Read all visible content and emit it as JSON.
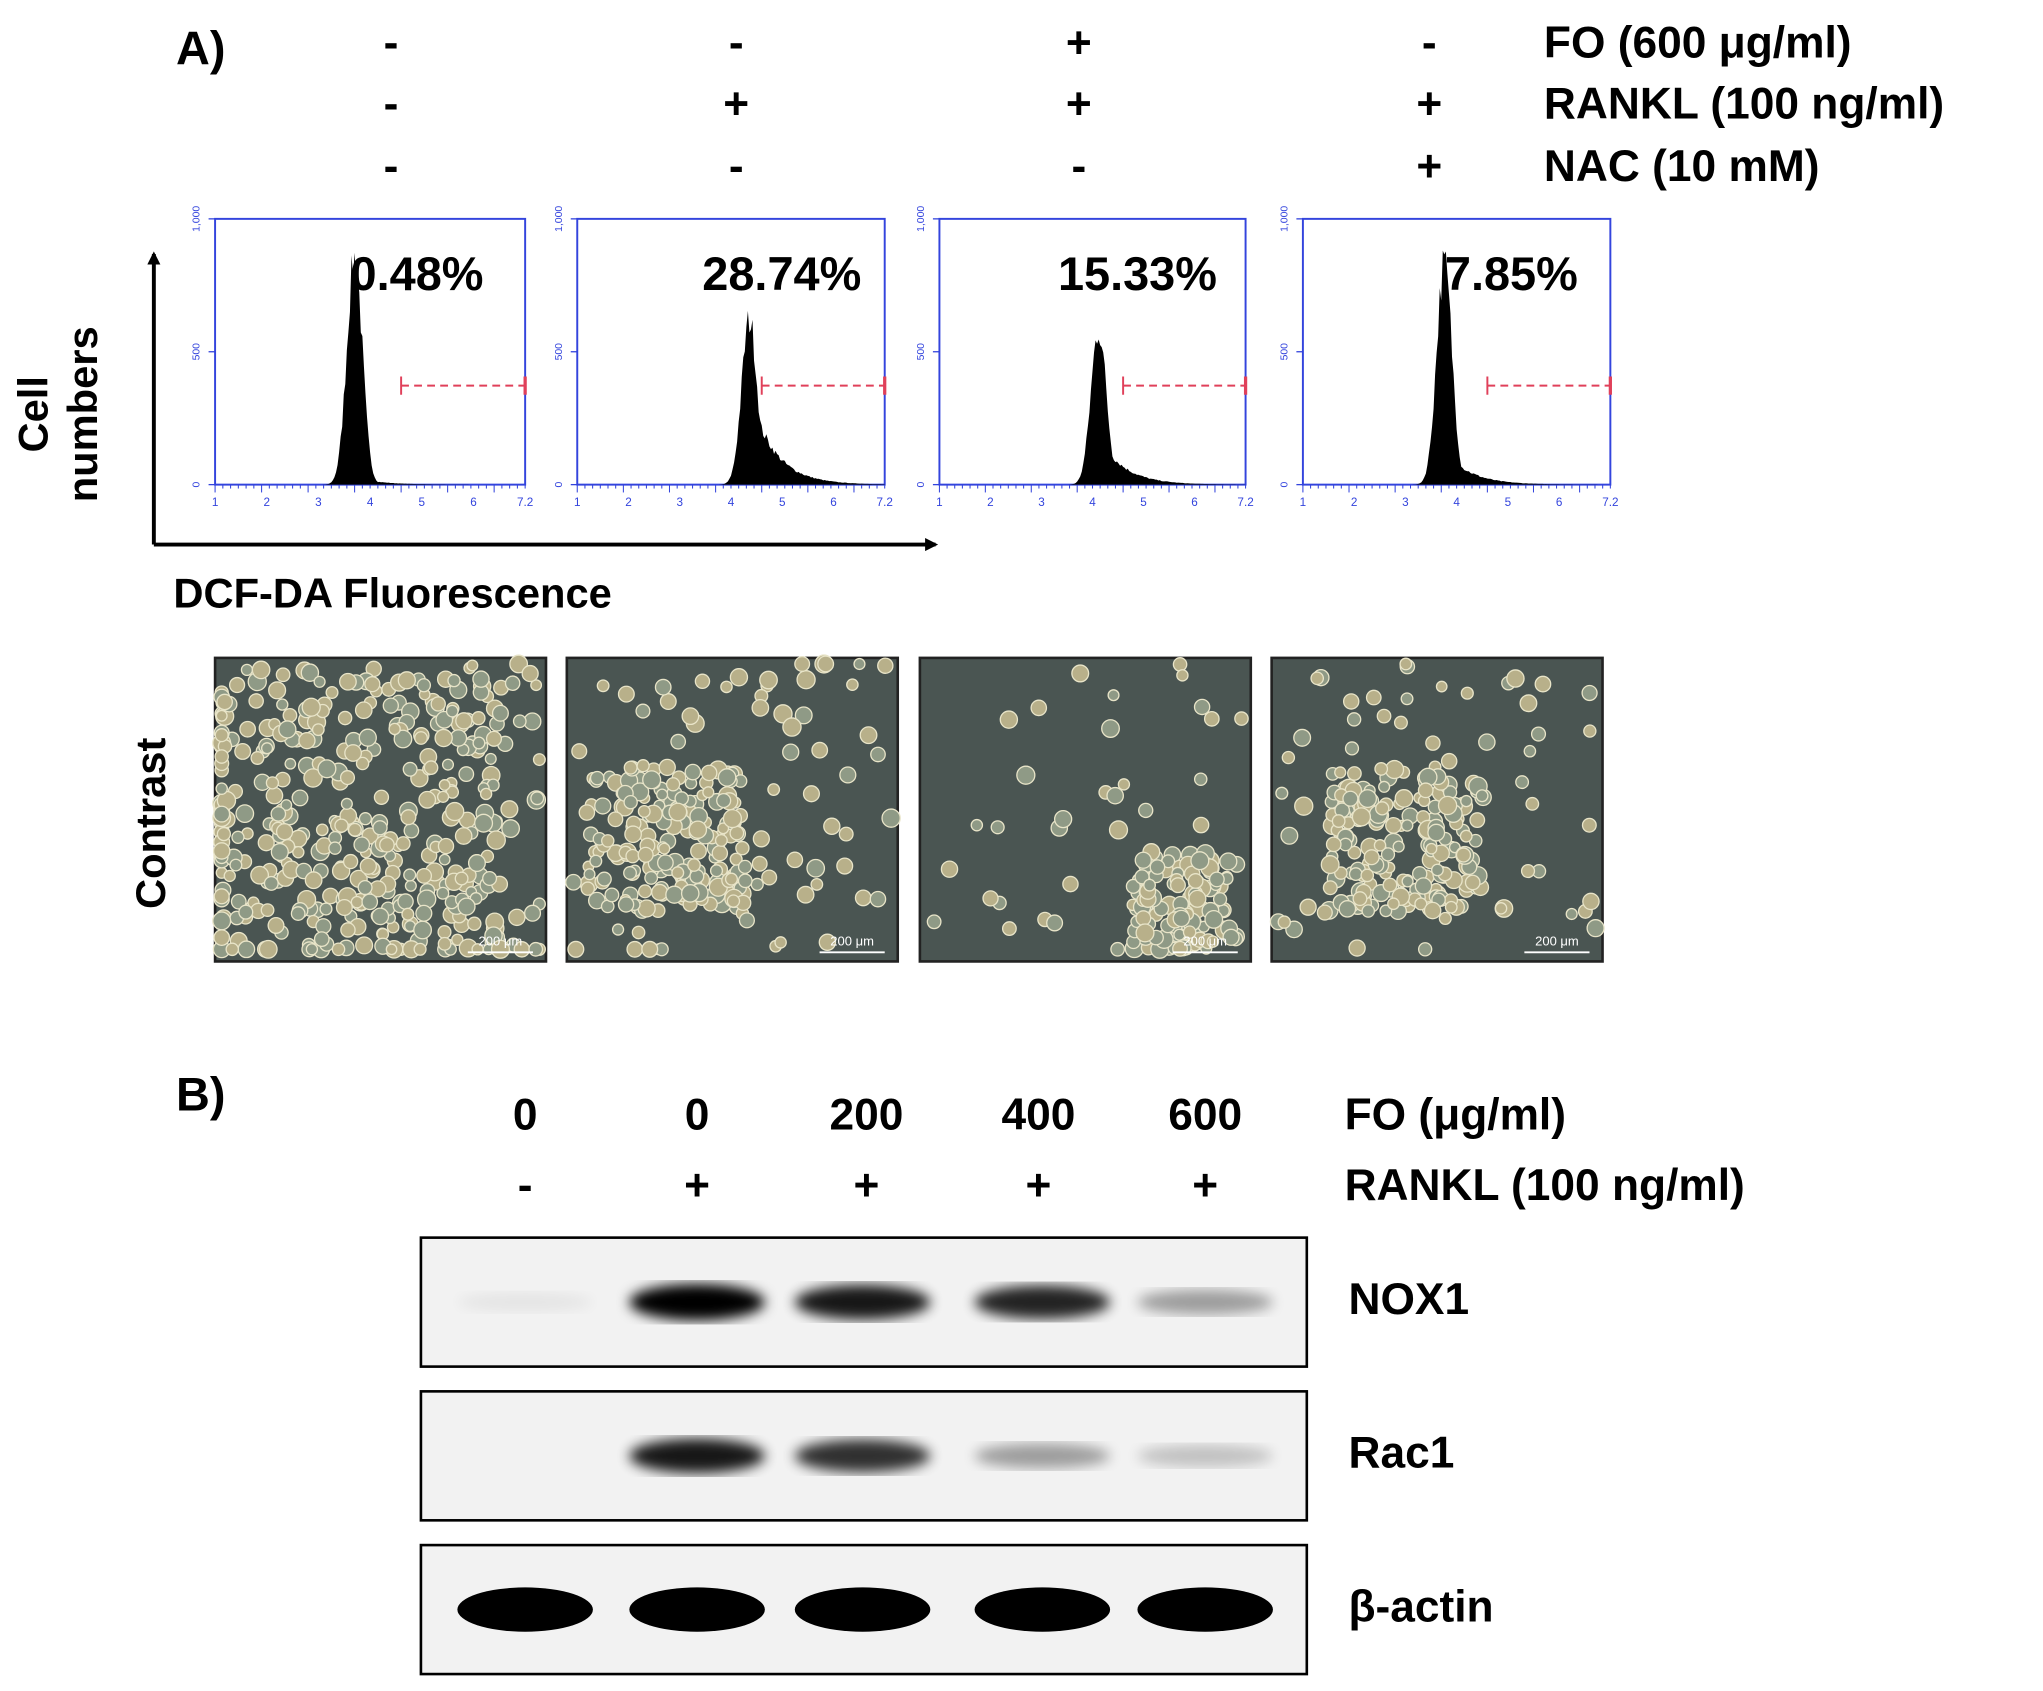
{
  "panel_a": {
    "label": "A)",
    "conditions": [
      {
        "label": "FO (600 μg/ml)",
        "signs": [
          "-",
          "-",
          "+",
          "-"
        ]
      },
      {
        "label": "RANKL (100 ng/ml)",
        "signs": [
          "-",
          "+",
          "+",
          "+"
        ]
      },
      {
        "label": "NAC (10 mM)",
        "signs": [
          "-",
          "-",
          "-",
          "+"
        ]
      }
    ],
    "histograms": {
      "percentages": [
        "0.48%",
        "28.74%",
        "15.33%",
        "7.85%"
      ],
      "yticks": [
        "1,000",
        "500",
        "0"
      ],
      "xticks": [
        "1",
        "2",
        "3",
        "4",
        "5",
        "6",
        "7.2"
      ]
    },
    "y_axis_label": [
      "Cell",
      "numbers"
    ],
    "x_axis_label": "DCF-DA Fluorescence",
    "image_row_label": "Contrast",
    "scale_bar": "200 μm"
  },
  "panel_b": {
    "label": "B)",
    "conditions": [
      {
        "label": "FO (μg/ml)",
        "values": [
          "0",
          "0",
          "200",
          "400",
          "600"
        ]
      },
      {
        "label": "RANKL (100 ng/ml)",
        "values": [
          "-",
          "+",
          "+",
          "+",
          "+"
        ]
      }
    ],
    "blots": [
      "NOX1",
      "Rac1",
      "β-actin"
    ]
  }
}
